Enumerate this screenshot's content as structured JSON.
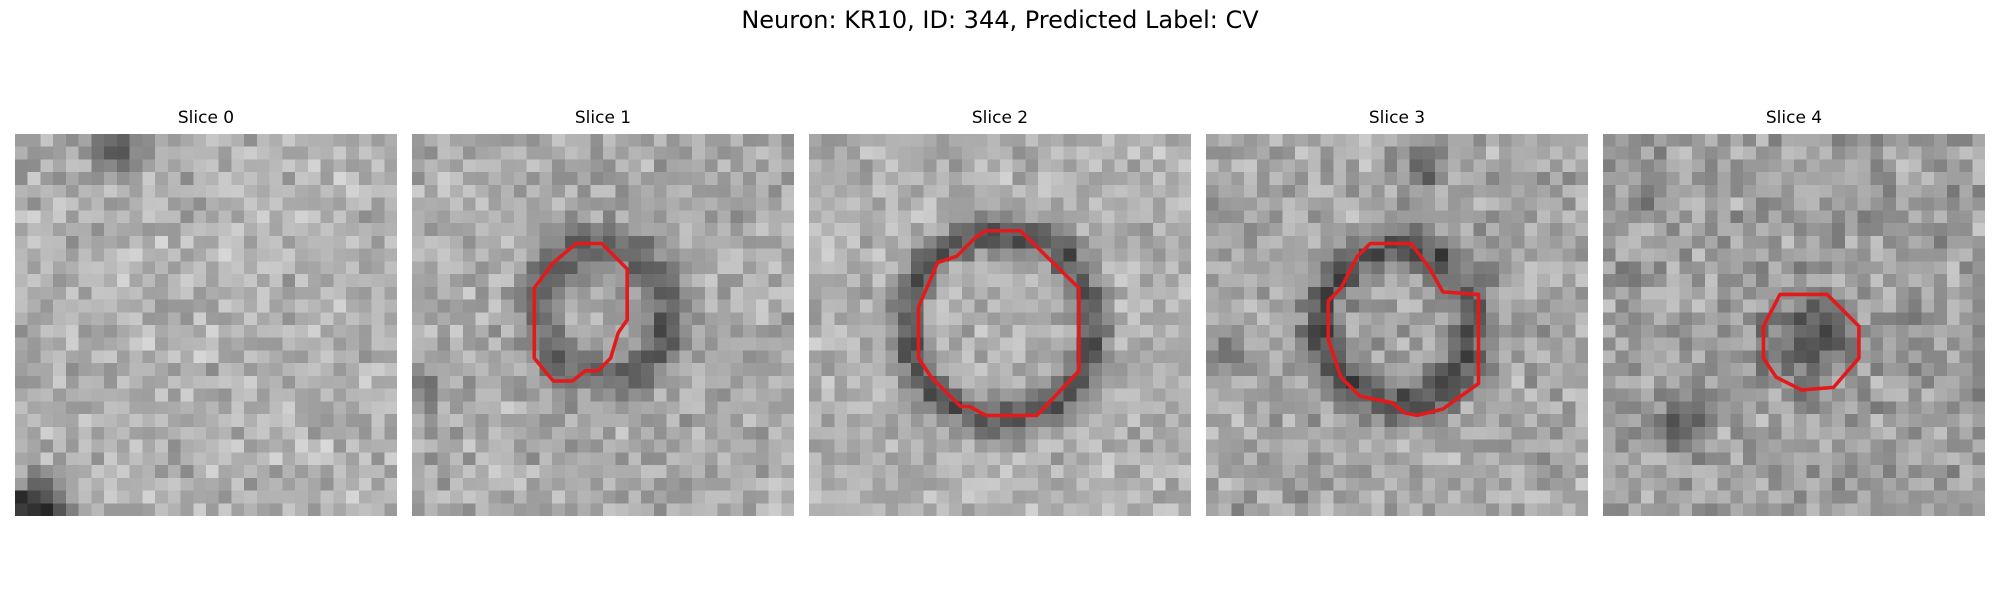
{
  "figure": {
    "title": "Neuron: KR10, ID: 344, Predicted Label: CV"
  },
  "panels": [
    {
      "title": "Slice 0",
      "has_contour": false
    },
    {
      "title": "Slice 1",
      "has_contour": true
    },
    {
      "title": "Slice 2",
      "has_contour": true
    },
    {
      "title": "Slice 3",
      "has_contour": true
    },
    {
      "title": "Slice 4",
      "has_contour": true
    }
  ],
  "colors": {
    "contour": "#e31a1c",
    "background": "#ffffff"
  }
}
